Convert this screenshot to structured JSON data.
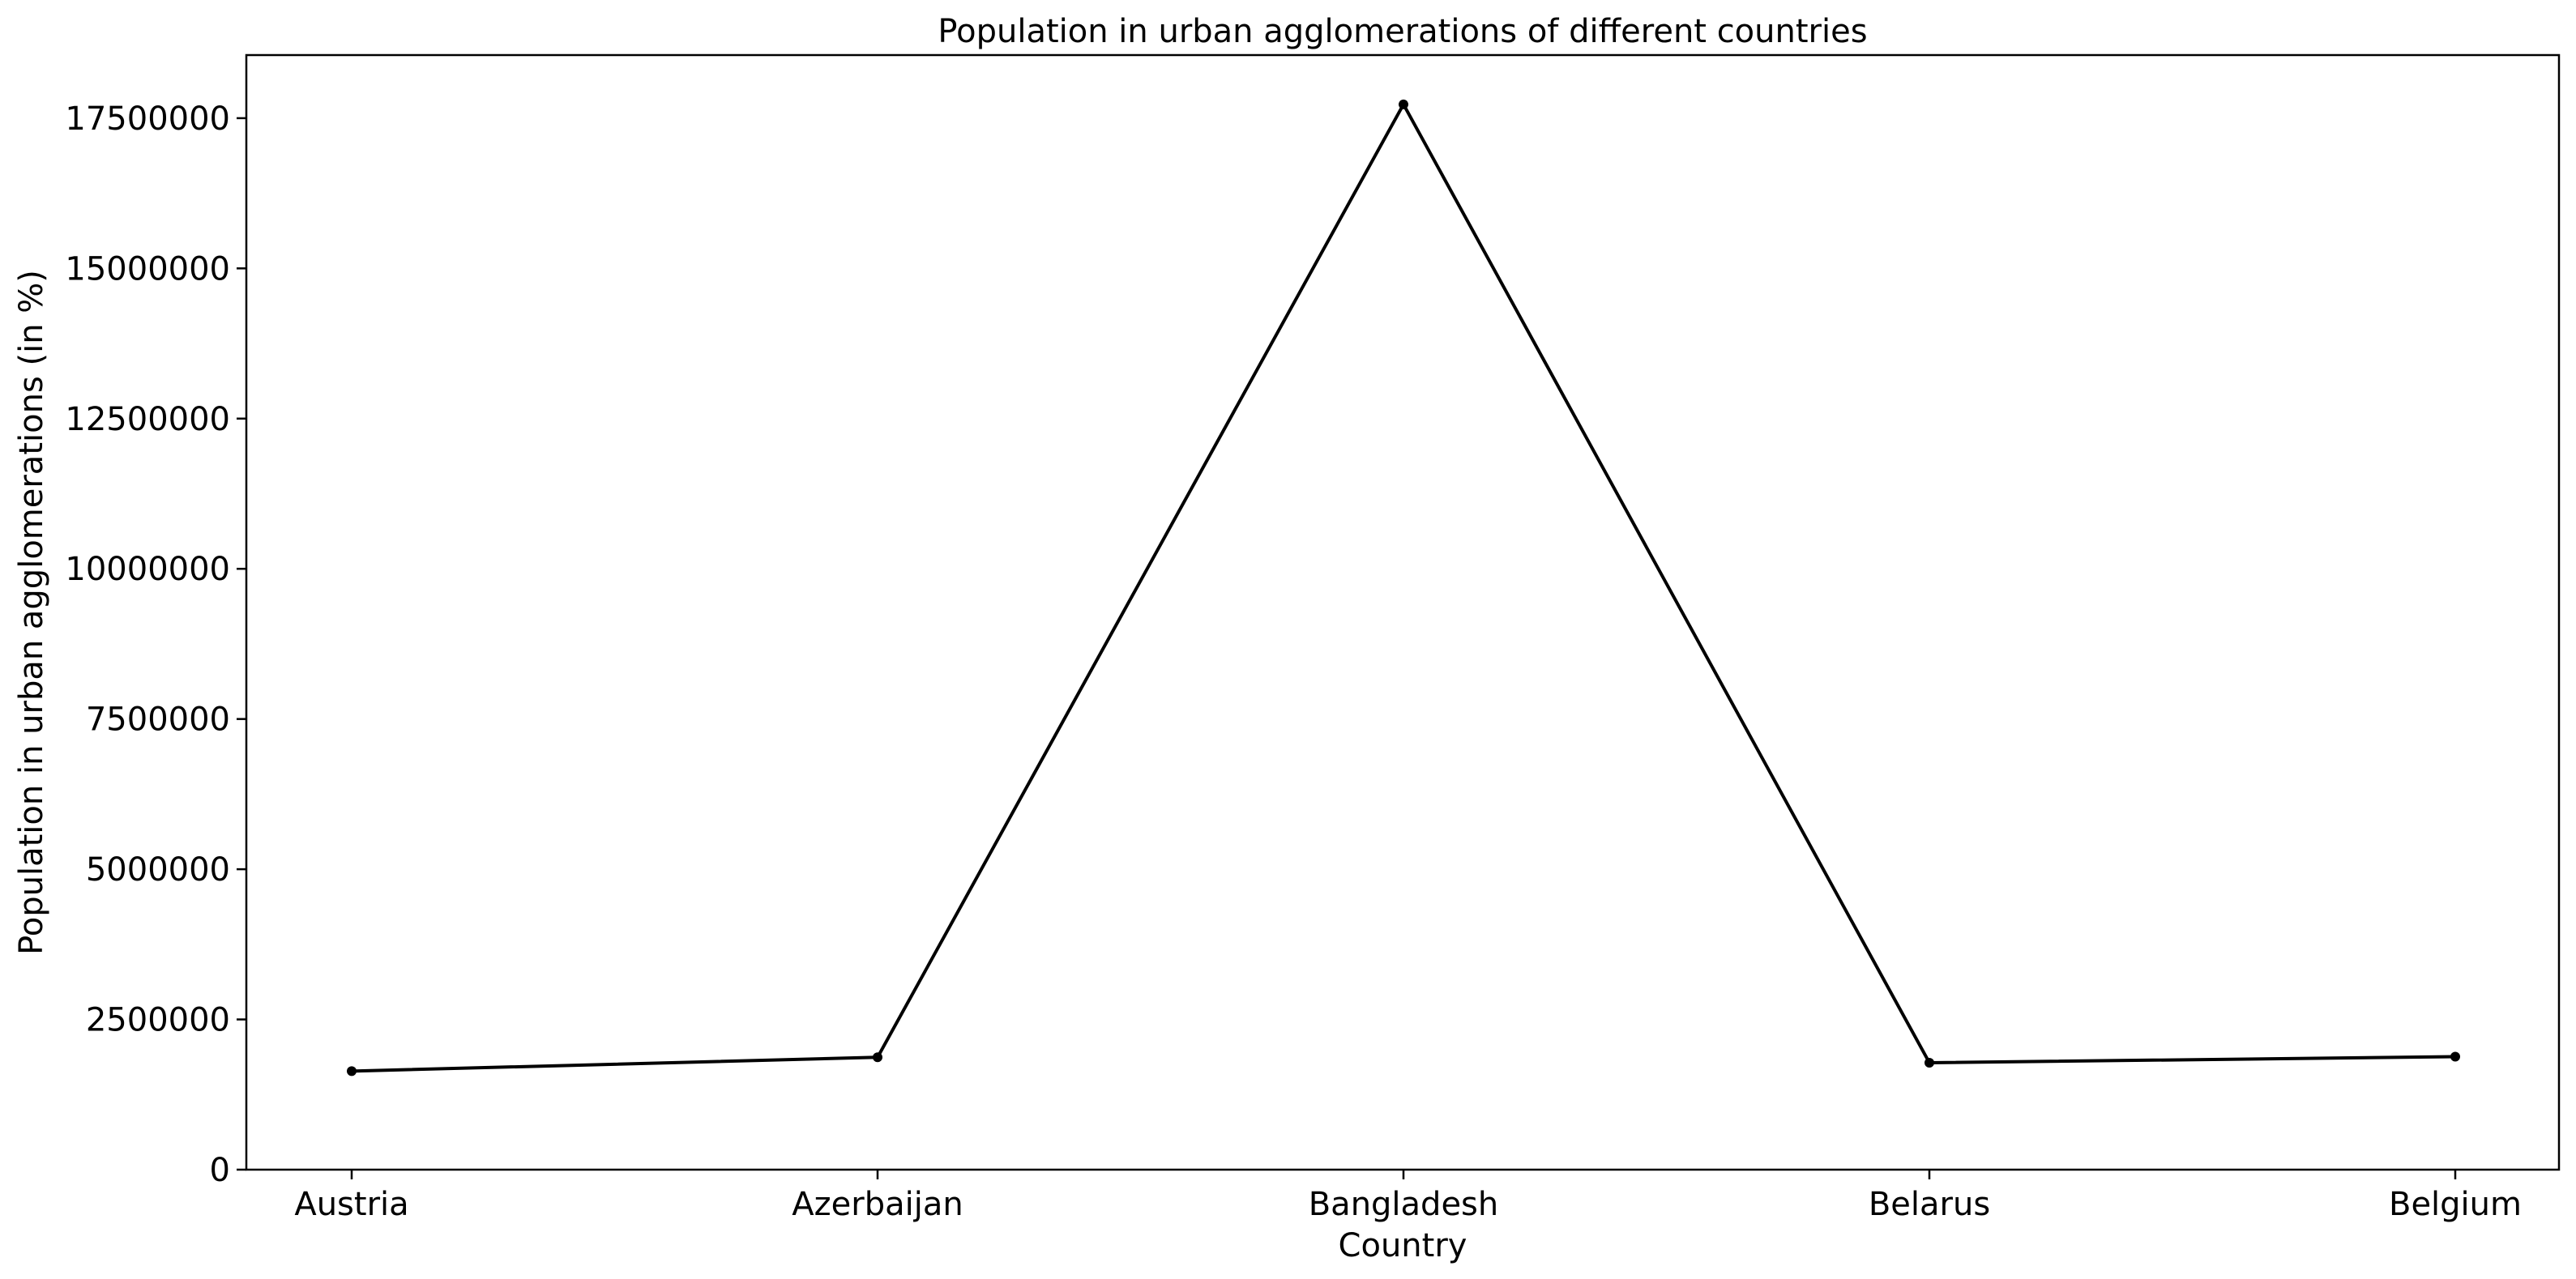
{
  "chart_data": {
    "type": "line",
    "title": "Population in urban agglomerations of different countries",
    "xlabel": "Country",
    "ylabel": "Population in urban agglomerations (in %)",
    "categories": [
      "Austria",
      "Azerbaijan",
      "Bangladesh",
      "Belarus",
      "Belgium"
    ],
    "series": [
      {
        "values": [
          1640000,
          1870000,
          17730000,
          1780000,
          1880000
        ],
        "color": "#000000",
        "marker": "point"
      }
    ],
    "ylim": [
      0,
      18550000
    ],
    "yticks": [
      0,
      2500000,
      5000000,
      7500000,
      10000000,
      12500000,
      15000000,
      17500000
    ],
    "ytick_labels": [
      "0",
      "2500000",
      "5000000",
      "7500000",
      "10000000",
      "12500000",
      "15000000",
      "17500000"
    ],
    "grid": false,
    "legend": "none"
  }
}
